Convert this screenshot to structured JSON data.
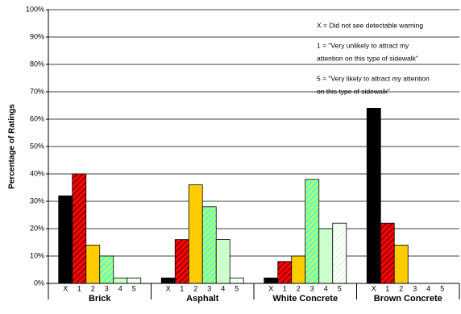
{
  "chart_data": {
    "type": "bar",
    "y_label": "Percentage of Ratings",
    "categories": [
      "Brick",
      "Asphalt",
      "White Concrete",
      "Brown Concrete"
    ],
    "series": [
      {
        "name": "X",
        "color": "#000000",
        "values": [
          32,
          2,
          2,
          64
        ]
      },
      {
        "name": "1",
        "color": "#ff0000",
        "values": [
          40,
          16,
          8,
          22
        ]
      },
      {
        "name": "2",
        "color": "#ffcc00",
        "values": [
          14,
          36,
          10,
          14
        ]
      },
      {
        "name": "3",
        "color": "#66ffcc",
        "values": [
          10,
          28,
          38,
          0
        ]
      },
      {
        "name": "4",
        "color": "#ccffcc",
        "values": [
          2,
          16,
          20,
          0
        ]
      },
      {
        "name": "5",
        "color": "#eeffee",
        "values": [
          2,
          2,
          22,
          0
        ]
      }
    ],
    "ylim": [
      0,
      100
    ],
    "yticks": [
      {
        "value": 0,
        "label": "0%"
      },
      {
        "value": 10,
        "label": "10%"
      },
      {
        "value": 20,
        "label": "20%"
      },
      {
        "value": 30,
        "label": "30%"
      },
      {
        "value": 40,
        "label": "40%"
      },
      {
        "value": 50,
        "label": "50%"
      },
      {
        "value": 60,
        "label": "60%"
      },
      {
        "value": 70,
        "label": "70%"
      },
      {
        "value": 80,
        "label": "80%"
      },
      {
        "value": 90,
        "label": "90%"
      },
      {
        "value": 100,
        "label": "100%"
      }
    ],
    "grid": true,
    "annotations": [
      [
        "X = Did not see detectable warning"
      ],
      [
        "1 = \"Very unlikely to attract my",
        "attention on this type of sidewalk\""
      ],
      [
        "5 = \"Very likely to attract my attention",
        "on this type of sidewalk\""
      ]
    ]
  }
}
